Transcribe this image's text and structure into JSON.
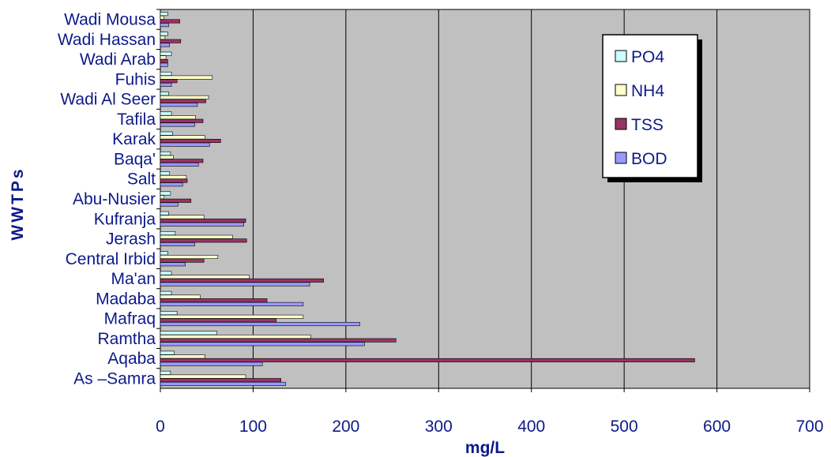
{
  "chart_data": {
    "type": "bar",
    "orientation": "horizontal",
    "xlabel": "mg/L",
    "ylabel": "WWTPs",
    "xlim": [
      0,
      700
    ],
    "xticks": [
      "0",
      "100",
      "200",
      "300",
      "400",
      "500",
      "600",
      "700"
    ],
    "grid": "vertical",
    "legend_position": "top-right",
    "categories": [
      "Wadi Mousa",
      "Wadi Hassan",
      "Wadi Arab",
      "Fuhis",
      "Wadi Al Seer",
      "Tafila",
      "Karak",
      "Baqa'",
      "Salt",
      "Abu-Nusier",
      "Kufranja",
      "Jerash",
      "Central Irbid",
      "Ma'an",
      "Madaba",
      "Mafraq",
      "Ramtha",
      "Aqaba",
      "As –Samra"
    ],
    "series": [
      {
        "name": "PO4",
        "color": "#ccffff",
        "values": [
          8,
          8,
          12,
          12,
          9,
          12,
          13,
          11,
          10,
          11,
          9,
          16,
          8,
          12,
          12,
          18,
          61,
          15,
          11
        ]
      },
      {
        "name": "NH4",
        "color": "#ffffcc",
        "values": [
          4,
          5,
          6,
          56,
          52,
          38,
          48,
          14,
          28,
          4,
          47,
          78,
          62,
          96,
          43,
          154,
          162,
          48,
          92
        ]
      },
      {
        "name": "TSS",
        "color": "#993366",
        "values": [
          21,
          22,
          8,
          18,
          49,
          46,
          65,
          46,
          29,
          33,
          92,
          93,
          47,
          176,
          115,
          125,
          254,
          576,
          130
        ]
      },
      {
        "name": "BOD",
        "color": "#9999ff",
        "values": [
          9,
          10,
          8,
          12,
          40,
          37,
          53,
          41,
          24,
          19,
          90,
          37,
          27,
          161,
          154,
          215,
          220,
          110,
          135
        ]
      }
    ],
    "plot_background": "#c0c0c0"
  }
}
